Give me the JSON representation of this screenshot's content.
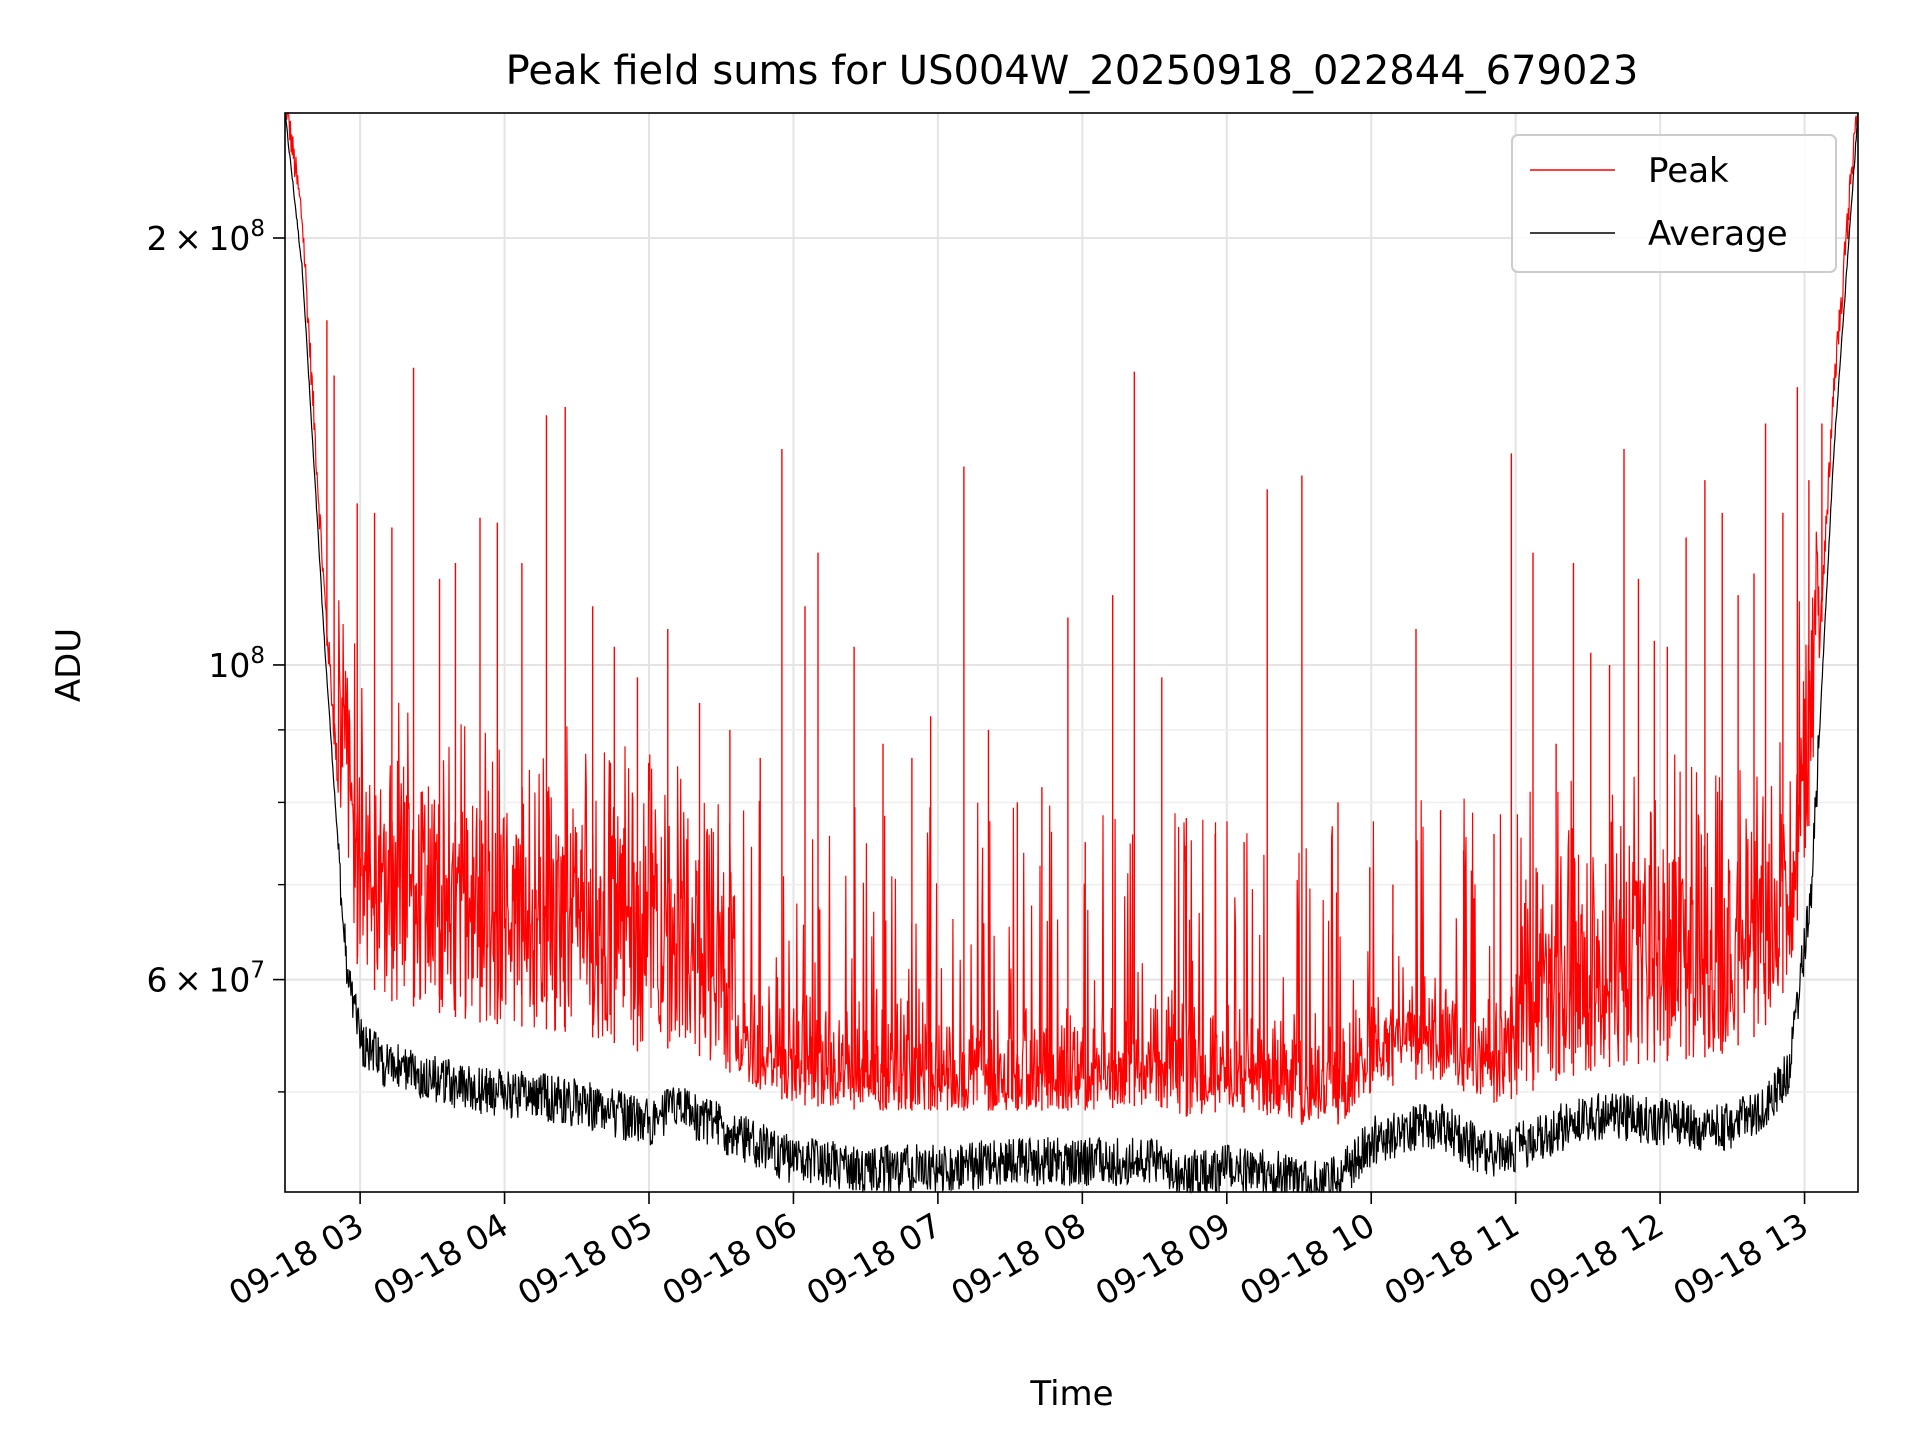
{
  "chart_data": {
    "type": "line",
    "title": "Peak field sums for US004W_20250918_022844_679023",
    "xlabel": "Time",
    "ylabel": "ADU",
    "yscale": "log",
    "ylim": [
      42500000,
      245000000
    ],
    "x_units": "hours since 2025-09-18 00:00",
    "xlim": [
      2.48,
      13.37
    ],
    "x_ticks": [
      {
        "value": 3,
        "label": "09-18 03"
      },
      {
        "value": 4,
        "label": "09-18 04"
      },
      {
        "value": 5,
        "label": "09-18 05"
      },
      {
        "value": 6,
        "label": "09-18 06"
      },
      {
        "value": 7,
        "label": "09-18 07"
      },
      {
        "value": 8,
        "label": "09-18 08"
      },
      {
        "value": 9,
        "label": "09-18 09"
      },
      {
        "value": 10,
        "label": "09-18 10"
      },
      {
        "value": 11,
        "label": "09-18 11"
      },
      {
        "value": 12,
        "label": "09-18 12"
      },
      {
        "value": 13,
        "label": "09-18 13"
      }
    ],
    "y_major_ticks": [
      {
        "value": 200000000,
        "mantissa": "2",
        "exponent": "8"
      },
      {
        "value": 100000000,
        "mantissa": "",
        "exponent": "8"
      },
      {
        "value": 60000000,
        "mantissa": "6",
        "exponent": "7"
      }
    ],
    "y_minor_ticks": [
      50000000,
      70000000,
      80000000,
      90000000
    ],
    "grid": true,
    "legend_position": "top-right",
    "series": [
      {
        "name": "Peak",
        "color": "#ff0000",
        "baseline_x": [
          2.48,
          2.6,
          2.75,
          2.9,
          3.0,
          3.2,
          3.5,
          3.8,
          4.2,
          4.5,
          4.8,
          5.0,
          5.2,
          5.5,
          5.8,
          6.0,
          6.5,
          7.0,
          7.5,
          8.0,
          8.5,
          8.7,
          9.0,
          9.4,
          9.6,
          9.8,
          10.0,
          10.3,
          10.5,
          10.8,
          11.0,
          11.3,
          11.6,
          12.0,
          12.4,
          12.7,
          12.9,
          13.05,
          13.2,
          13.37
        ],
        "baseline_y": [
          245000000,
          200000000,
          110000000,
          68000000,
          60000000,
          58000000,
          57000000,
          56000000,
          55500000,
          55000000,
          54000000,
          53000000,
          54000000,
          52000000,
          50000000,
          49000000,
          48500000,
          48500000,
          48500000,
          48500000,
          49000000,
          48000000,
          48500000,
          48000000,
          47000000,
          47500000,
          50000000,
          51000000,
          51000000,
          49000000,
          49500000,
          51000000,
          52000000,
          52500000,
          53000000,
          55000000,
          60000000,
          80000000,
          150000000,
          245000000
        ],
        "spikes": [
          {
            "x": 2.77,
            "y": 175000000
          },
          {
            "x": 2.82,
            "y": 160000000
          },
          {
            "x": 2.98,
            "y": 130000000
          },
          {
            "x": 3.1,
            "y": 128000000
          },
          {
            "x": 3.22,
            "y": 125000000
          },
          {
            "x": 3.37,
            "y": 162000000
          },
          {
            "x": 3.55,
            "y": 115000000
          },
          {
            "x": 3.66,
            "y": 118000000
          },
          {
            "x": 3.83,
            "y": 127000000
          },
          {
            "x": 3.95,
            "y": 126000000
          },
          {
            "x": 4.12,
            "y": 118000000
          },
          {
            "x": 4.29,
            "y": 150000000
          },
          {
            "x": 4.42,
            "y": 152000000
          },
          {
            "x": 4.61,
            "y": 110000000
          },
          {
            "x": 4.76,
            "y": 103000000
          },
          {
            "x": 4.92,
            "y": 98000000
          },
          {
            "x": 5.13,
            "y": 106000000
          },
          {
            "x": 5.35,
            "y": 94000000
          },
          {
            "x": 5.56,
            "y": 90000000
          },
          {
            "x": 5.77,
            "y": 86000000
          },
          {
            "x": 5.92,
            "y": 142000000
          },
          {
            "x": 6.08,
            "y": 110000000
          },
          {
            "x": 6.17,
            "y": 120000000
          },
          {
            "x": 6.42,
            "y": 103000000
          },
          {
            "x": 6.62,
            "y": 88000000
          },
          {
            "x": 6.82,
            "y": 86000000
          },
          {
            "x": 6.95,
            "y": 92000000
          },
          {
            "x": 7.18,
            "y": 138000000
          },
          {
            "x": 7.35,
            "y": 90000000
          },
          {
            "x": 7.55,
            "y": 80000000
          },
          {
            "x": 7.72,
            "y": 82000000
          },
          {
            "x": 7.9,
            "y": 108000000
          },
          {
            "x": 8.02,
            "y": 75000000
          },
          {
            "x": 8.21,
            "y": 112000000
          },
          {
            "x": 8.36,
            "y": 161000000
          },
          {
            "x": 8.55,
            "y": 98000000
          },
          {
            "x": 8.72,
            "y": 78000000
          },
          {
            "x": 8.92,
            "y": 76000000
          },
          {
            "x": 9.12,
            "y": 75000000
          },
          {
            "x": 9.28,
            "y": 133000000
          },
          {
            "x": 9.52,
            "y": 136000000
          },
          {
            "x": 9.77,
            "y": 80000000
          },
          {
            "x": 9.99,
            "y": 72000000
          },
          {
            "x": 10.15,
            "y": 70000000
          },
          {
            "x": 10.31,
            "y": 106000000
          },
          {
            "x": 10.48,
            "y": 79000000
          },
          {
            "x": 10.64,
            "y": 74000000
          },
          {
            "x": 10.85,
            "y": 76000000
          },
          {
            "x": 10.97,
            "y": 141000000
          },
          {
            "x": 11.12,
            "y": 120000000
          },
          {
            "x": 11.28,
            "y": 88000000
          },
          {
            "x": 11.4,
            "y": 118000000
          },
          {
            "x": 11.52,
            "y": 102000000
          },
          {
            "x": 11.65,
            "y": 100000000
          },
          {
            "x": 11.75,
            "y": 142000000
          },
          {
            "x": 11.85,
            "y": 115000000
          },
          {
            "x": 11.96,
            "y": 104000000
          },
          {
            "x": 12.05,
            "y": 103000000
          },
          {
            "x": 12.18,
            "y": 123000000
          },
          {
            "x": 12.31,
            "y": 135000000
          },
          {
            "x": 12.43,
            "y": 128000000
          },
          {
            "x": 12.54,
            "y": 112000000
          },
          {
            "x": 12.65,
            "y": 116000000
          },
          {
            "x": 12.73,
            "y": 148000000
          },
          {
            "x": 12.85,
            "y": 128000000
          },
          {
            "x": 12.95,
            "y": 157000000
          },
          {
            "x": 13.03,
            "y": 135000000
          },
          {
            "x": 13.12,
            "y": 148000000
          }
        ]
      },
      {
        "name": "Average",
        "color": "#000000",
        "baseline_x": [
          2.48,
          2.6,
          2.75,
          2.9,
          3.0,
          3.2,
          3.5,
          3.8,
          4.2,
          4.5,
          4.8,
          5.0,
          5.2,
          5.5,
          5.8,
          6.0,
          6.5,
          7.0,
          7.5,
          8.0,
          8.5,
          8.7,
          9.0,
          9.4,
          9.6,
          9.8,
          10.0,
          10.3,
          10.5,
          10.8,
          11.0,
          11.3,
          11.6,
          12.0,
          12.4,
          12.7,
          12.9,
          13.05,
          13.2,
          13.37
        ],
        "baseline_y": [
          245000000,
          190000000,
          105000000,
          62000000,
          54000000,
          52000000,
          51000000,
          50000000,
          49500000,
          49000000,
          48000000,
          47500000,
          48500000,
          47000000,
          45500000,
          44500000,
          44000000,
          44000000,
          44500000,
          44500000,
          44500000,
          43500000,
          44000000,
          43500000,
          42800000,
          43500000,
          46000000,
          47000000,
          47000000,
          45000000,
          45500000,
          47000000,
          48000000,
          47500000,
          47000000,
          48000000,
          52000000,
          70000000,
          140000000,
          245000000
        ]
      }
    ]
  },
  "legend": {
    "peak_label": "Peak",
    "average_label": "Average"
  }
}
